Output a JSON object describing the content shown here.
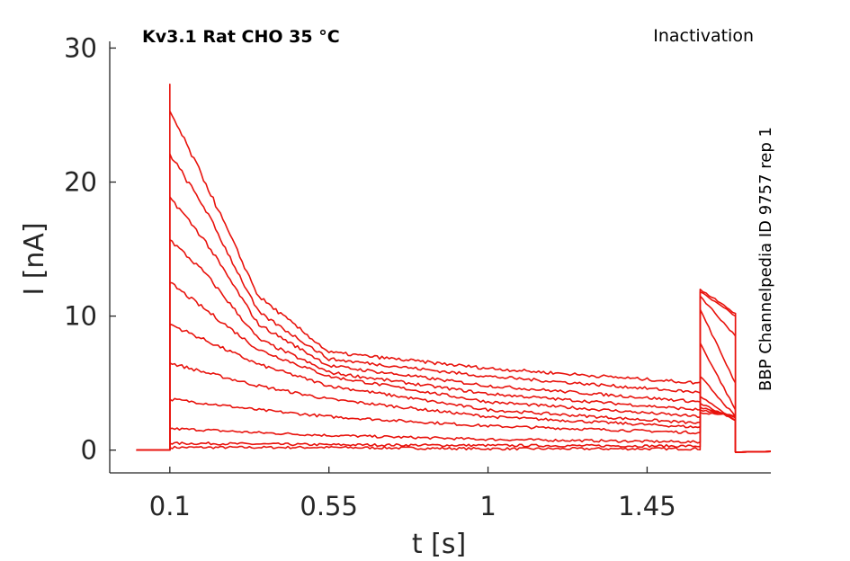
{
  "chart_data": {
    "type": "line",
    "title": "Kv3.1  Rat  CHO  35 °C",
    "protocol": "Inactivation",
    "side_note": "BBP Channelpedia ID 9757 rep 1",
    "xlabel": "t [s]",
    "ylabel": "I [nA]",
    "xlim": [
      -0.07,
      1.8
    ],
    "ylim": [
      -1.7,
      30.5
    ],
    "xticks": [
      0.1,
      0.55,
      1,
      1.45
    ],
    "xtick_labels": [
      "0.1",
      "0.55",
      "1",
      "1.45"
    ],
    "yticks": [
      0,
      10,
      20,
      30
    ],
    "ytick_labels": [
      "0",
      "10",
      "20",
      "30"
    ],
    "grid": false,
    "line_color": "#e8120c",
    "protocol_times": {
      "pre_start": 0.005,
      "step_on": 0.1,
      "test_on": 1.6,
      "test_off": 1.7,
      "end": 1.8
    },
    "series": [
      {
        "x": [
          0.1,
          0.2,
          0.35,
          0.55,
          1.0,
          1.6
        ],
        "y": [
          0.2,
          0.2,
          0.2,
          0.2,
          0.1,
          0.1
        ],
        "test_x": [
          1.6,
          1.7
        ],
        "test_y": [
          12.0,
          10.2
        ]
      },
      {
        "x": [
          0.1,
          0.2,
          0.35,
          0.55,
          1.0,
          1.6
        ],
        "y": [
          0.5,
          0.5,
          0.45,
          0.4,
          0.35,
          0.3
        ],
        "test_x": [
          1.6,
          1.7
        ],
        "test_y": [
          11.8,
          10.0
        ]
      },
      {
        "x": [
          0.1,
          0.2,
          0.35,
          0.55,
          1.0,
          1.6
        ],
        "y": [
          1.6,
          1.5,
          1.3,
          1.1,
          0.8,
          0.6
        ],
        "test_x": [
          1.6,
          1.7
        ],
        "test_y": [
          11.5,
          8.5
        ]
      },
      {
        "x": [
          0.1,
          0.2,
          0.35,
          0.55,
          1.0,
          1.6
        ],
        "y": [
          3.8,
          3.5,
          3.0,
          2.5,
          1.8,
          1.3
        ],
        "test_x": [
          1.6,
          1.7
        ],
        "test_y": [
          10.5,
          5.0
        ]
      },
      {
        "x": [
          0.1,
          0.2,
          0.35,
          0.55,
          1.0,
          1.6
        ],
        "y": [
          6.5,
          5.8,
          4.8,
          3.8,
          2.5,
          1.7
        ],
        "test_x": [
          1.6,
          1.7
        ],
        "test_y": [
          8.0,
          3.0
        ]
      },
      {
        "x": [
          0.1,
          0.2,
          0.35,
          0.55,
          1.0,
          1.6
        ],
        "y": [
          9.4,
          8.2,
          6.4,
          4.8,
          3.0,
          2.0
        ],
        "test_x": [
          1.6,
          1.7
        ],
        "test_y": [
          5.5,
          2.5
        ]
      },
      {
        "x": [
          0.1,
          0.2,
          0.35,
          0.55,
          1.0,
          1.6
        ],
        "y": [
          12.5,
          10.5,
          7.5,
          5.5,
          3.6,
          2.5
        ],
        "test_x": [
          1.6,
          1.7
        ],
        "test_y": [
          4.0,
          2.2
        ]
      },
      {
        "x": [
          0.1,
          0.2,
          0.35,
          0.55,
          1.0,
          1.6
        ],
        "y": [
          15.7,
          13.2,
          8.3,
          5.8,
          4.2,
          3.0
        ],
        "test_x": [
          1.6,
          1.7
        ],
        "test_y": [
          3.5,
          2.2
        ]
      },
      {
        "x": [
          0.1,
          0.2,
          0.35,
          0.55,
          1.0,
          1.6
        ],
        "y": [
          18.9,
          15.6,
          9.4,
          6.3,
          4.8,
          3.6
        ],
        "test_x": [
          1.6,
          1.7
        ],
        "test_y": [
          3.2,
          2.4
        ]
      },
      {
        "x": [
          0.1,
          0.2,
          0.35,
          0.55,
          1.0,
          1.6
        ],
        "y": [
          22.1,
          18.0,
          10.3,
          6.8,
          5.5,
          4.3
        ],
        "test_x": [
          1.6,
          1.7
        ],
        "test_y": [
          3.0,
          2.5
        ]
      },
      {
        "x": [
          0.1,
          0.2,
          0.35,
          0.55,
          1.0,
          1.6
        ],
        "y": [
          25.3,
          20.0,
          11.5,
          7.3,
          6.1,
          5.0
        ],
        "test_x": [
          1.6,
          1.7
        ],
        "test_y": [
          2.8,
          2.6
        ]
      }
    ],
    "peak_y": 27.3
  }
}
